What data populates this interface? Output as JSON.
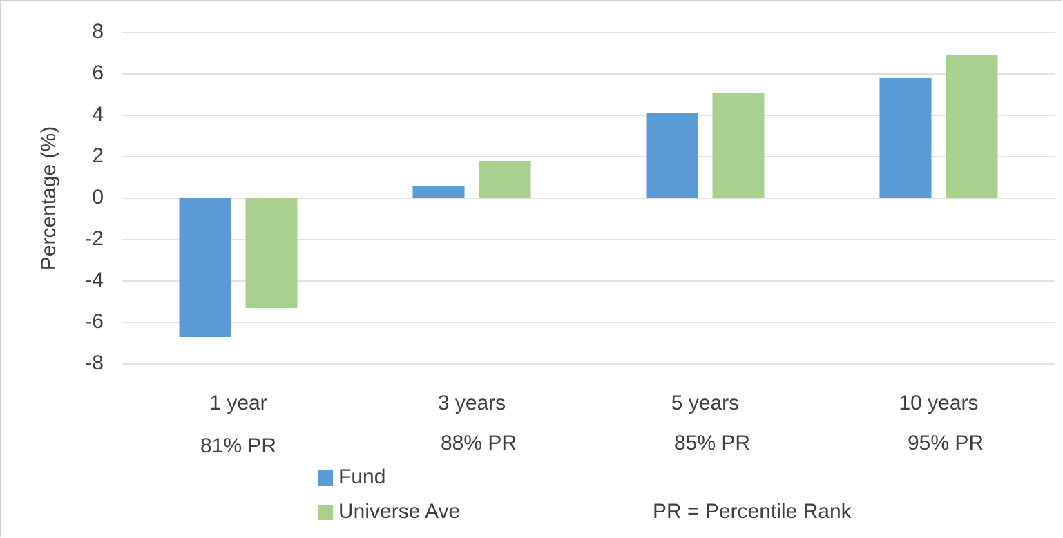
{
  "chart_data": {
    "type": "bar",
    "y_label": "Percentage (%)",
    "categories": [
      "1 year",
      "3 years",
      "5 years",
      "10 years"
    ],
    "annotations": [
      "81% PR",
      "88% PR",
      "85% PR",
      "95% PR"
    ],
    "series": [
      {
        "name": "Fund",
        "color": "#5b9bd5",
        "values": [
          -6.7,
          0.6,
          4.1,
          5.8
        ]
      },
      {
        "name": "Universe Ave",
        "color": "#a9d18e",
        "values": [
          -5.3,
          1.8,
          5.1,
          6.9
        ]
      }
    ],
    "note": "PR = Percentile Rank",
    "ylim": [
      -8,
      8
    ],
    "yticks": [
      -8,
      -6,
      -4,
      -2,
      0,
      2,
      4,
      6,
      8
    ],
    "grid": true,
    "legend": "bottom"
  }
}
